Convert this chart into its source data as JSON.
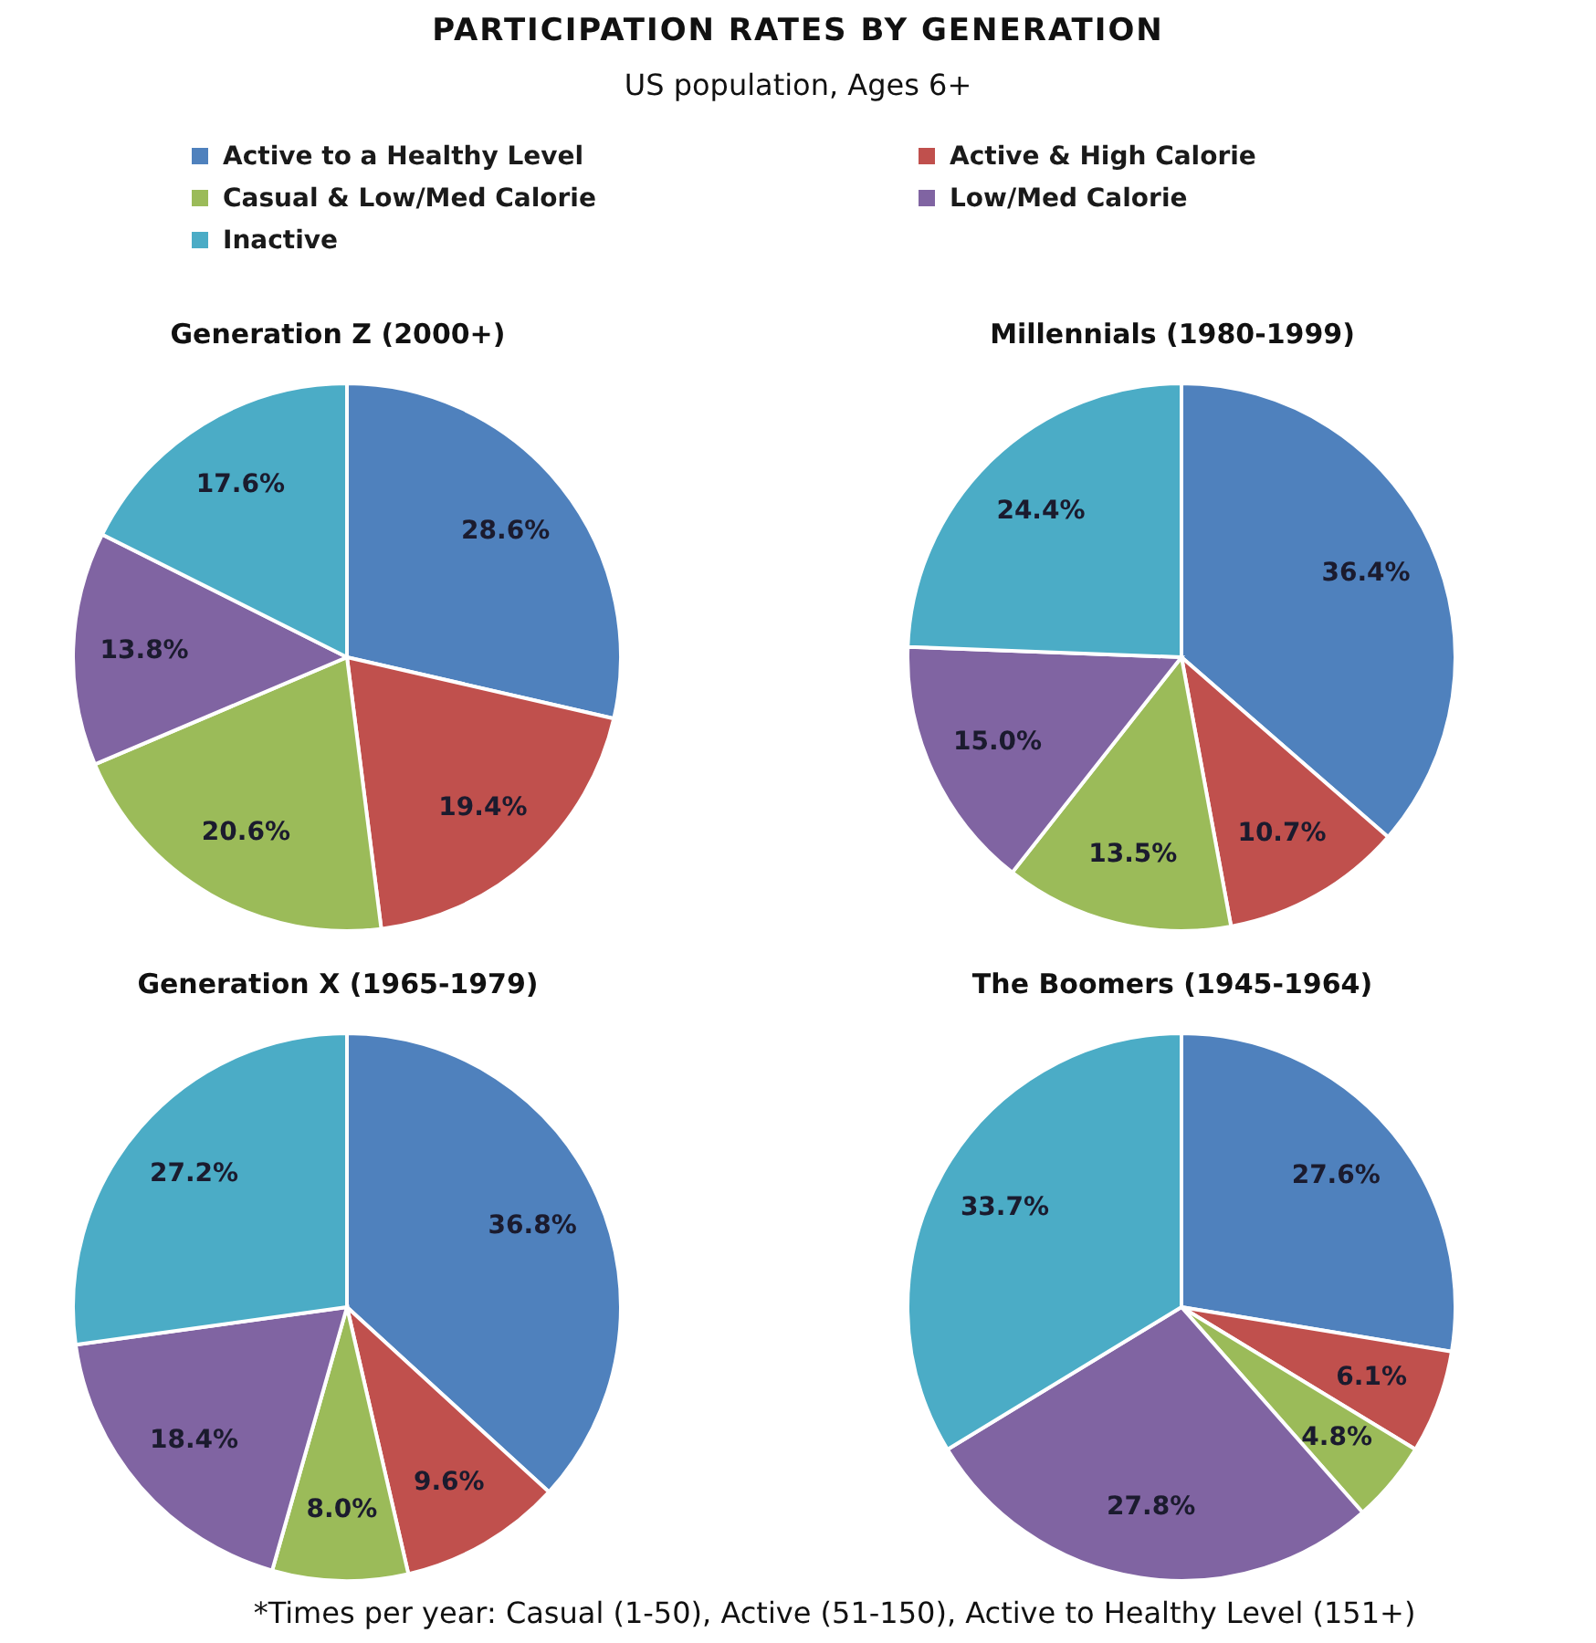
{
  "chart_data": [
    {
      "type": "other",
      "title": "PARTICIPATION RATES BY GENERATION",
      "subtitle": "US population, Ages 6+",
      "annotations": [
        "*Times per year: Casual (1-50), Active (51-150), Active to Healthy Level (151+)"
      ]
    },
    {
      "type": "pie",
      "title": "Generation Z (2000+)",
      "categories": [
        "Active to a Healthy Level",
        "Active & High Calorie",
        "Casual & Low/Med Calorie",
        "Low/Med Calorie",
        "Inactive"
      ],
      "values": [
        28.6,
        19.4,
        20.6,
        13.8,
        17.6
      ],
      "colors": [
        "#4f81bd",
        "#c0504d",
        "#9bbb59",
        "#8064a2",
        "#4bacc6"
      ],
      "value_labels": [
        "28.6%",
        "19.4%",
        "20.6%",
        "13.8%",
        "17.6%"
      ],
      "legend": "top"
    },
    {
      "type": "pie",
      "title": "Millennials (1980-1999)",
      "categories": [
        null,
        null,
        null,
        null,
        null
      ],
      "values": [
        36.4,
        10.7,
        13.5,
        15.0,
        24.4
      ],
      "colors": [
        "#4f81bd",
        "#c0504d",
        "#9bbb59",
        "#8064a2",
        "#4bacc6"
      ],
      "value_labels": [
        "36.4%",
        "10.7%",
        "13.5%",
        "15.0%",
        "24.4%"
      ]
    },
    {
      "type": "pie",
      "title": "Generation X (1965-1979)",
      "categories": [
        null,
        null,
        null,
        null,
        null
      ],
      "values": [
        36.8,
        9.6,
        8.0,
        18.4,
        27.2
      ],
      "colors": [
        "#4f81bd",
        "#c0504d",
        "#9bbb59",
        "#8064a2",
        "#4bacc6"
      ],
      "value_labels": [
        "36.8%",
        "9.6%",
        "8.0%",
        "18.4%",
        "27.2%"
      ]
    },
    {
      "type": "pie",
      "title": "The Boomers (1945-1964)",
      "categories": [
        null,
        null,
        null,
        null,
        null
      ],
      "values": [
        27.6,
        6.1,
        4.8,
        27.8,
        33.7
      ],
      "colors": [
        "#4f81bd",
        "#c0504d",
        "#9bbb59",
        "#8064a2",
        "#4bacc6"
      ],
      "value_labels": [
        "27.6%",
        "6.1%",
        "4.8%",
        "27.8%",
        "33.7%"
      ]
    }
  ]
}
